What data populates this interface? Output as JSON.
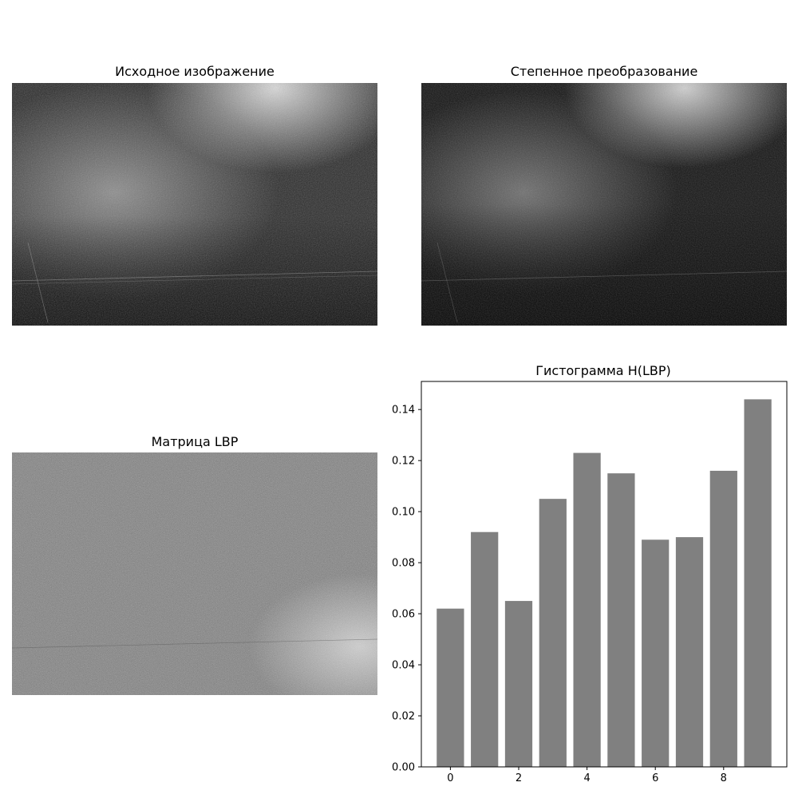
{
  "panels": {
    "original": {
      "title": "Исходное изображение"
    },
    "power": {
      "title": "Степенное преобразование"
    },
    "lbp": {
      "title": "Матрица LBP"
    }
  },
  "chart_data": {
    "type": "bar",
    "title": "Гистограмма H(LBP)",
    "xlabel": "",
    "ylabel": "",
    "categories": [
      0,
      1,
      2,
      3,
      4,
      5,
      6,
      7,
      8,
      9
    ],
    "values": [
      0.062,
      0.092,
      0.065,
      0.105,
      0.123,
      0.115,
      0.089,
      0.09,
      0.116,
      0.144
    ],
    "bar_color": "#808080",
    "xlim": [
      -0.85,
      9.85
    ],
    "ylim": [
      0,
      0.151
    ],
    "xticks": [
      0,
      2,
      4,
      6,
      8
    ],
    "yticks": [
      0.0,
      0.02,
      0.04,
      0.06,
      0.08,
      0.1,
      0.12,
      0.14
    ],
    "ytick_labels": [
      "0.00",
      "0.02",
      "0.04",
      "0.06",
      "0.08",
      "0.10",
      "0.12",
      "0.14"
    ],
    "grid": false,
    "legend": "none"
  }
}
